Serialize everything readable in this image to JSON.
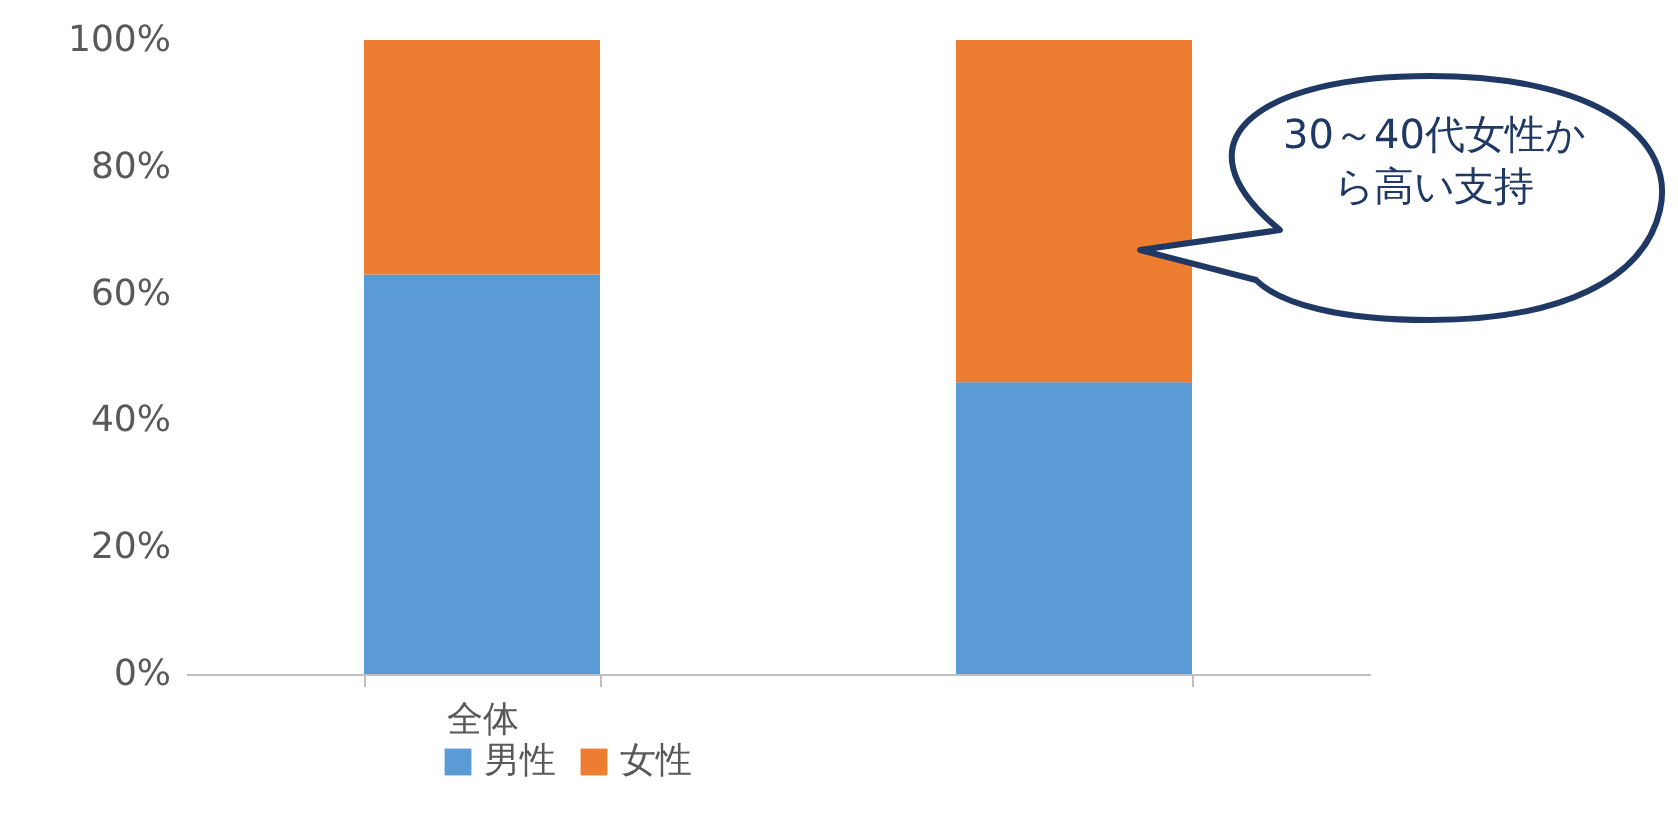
{
  "chart_data": {
    "type": "bar",
    "stacked": true,
    "categories": [
      "全体",
      null
    ],
    "series": [
      {
        "name": "男性",
        "color": "#5b9bd5",
        "values": [
          63,
          46
        ]
      },
      {
        "name": "女性",
        "color": "#ed7d31",
        "values": [
          37,
          54
        ]
      }
    ],
    "ylim": [
      0,
      100
    ],
    "yticks": [
      {
        "value": 0,
        "label": "0%"
      },
      {
        "value": 20,
        "label": "20%"
      },
      {
        "value": 40,
        "label": "40%"
      },
      {
        "value": 60,
        "label": "60%"
      },
      {
        "value": 80,
        "label": "80%"
      },
      {
        "value": 100,
        "label": "100%"
      }
    ],
    "legend": "bottom",
    "grid": false,
    "annotations": [
      "30～40代女性から高い支持"
    ]
  }
}
